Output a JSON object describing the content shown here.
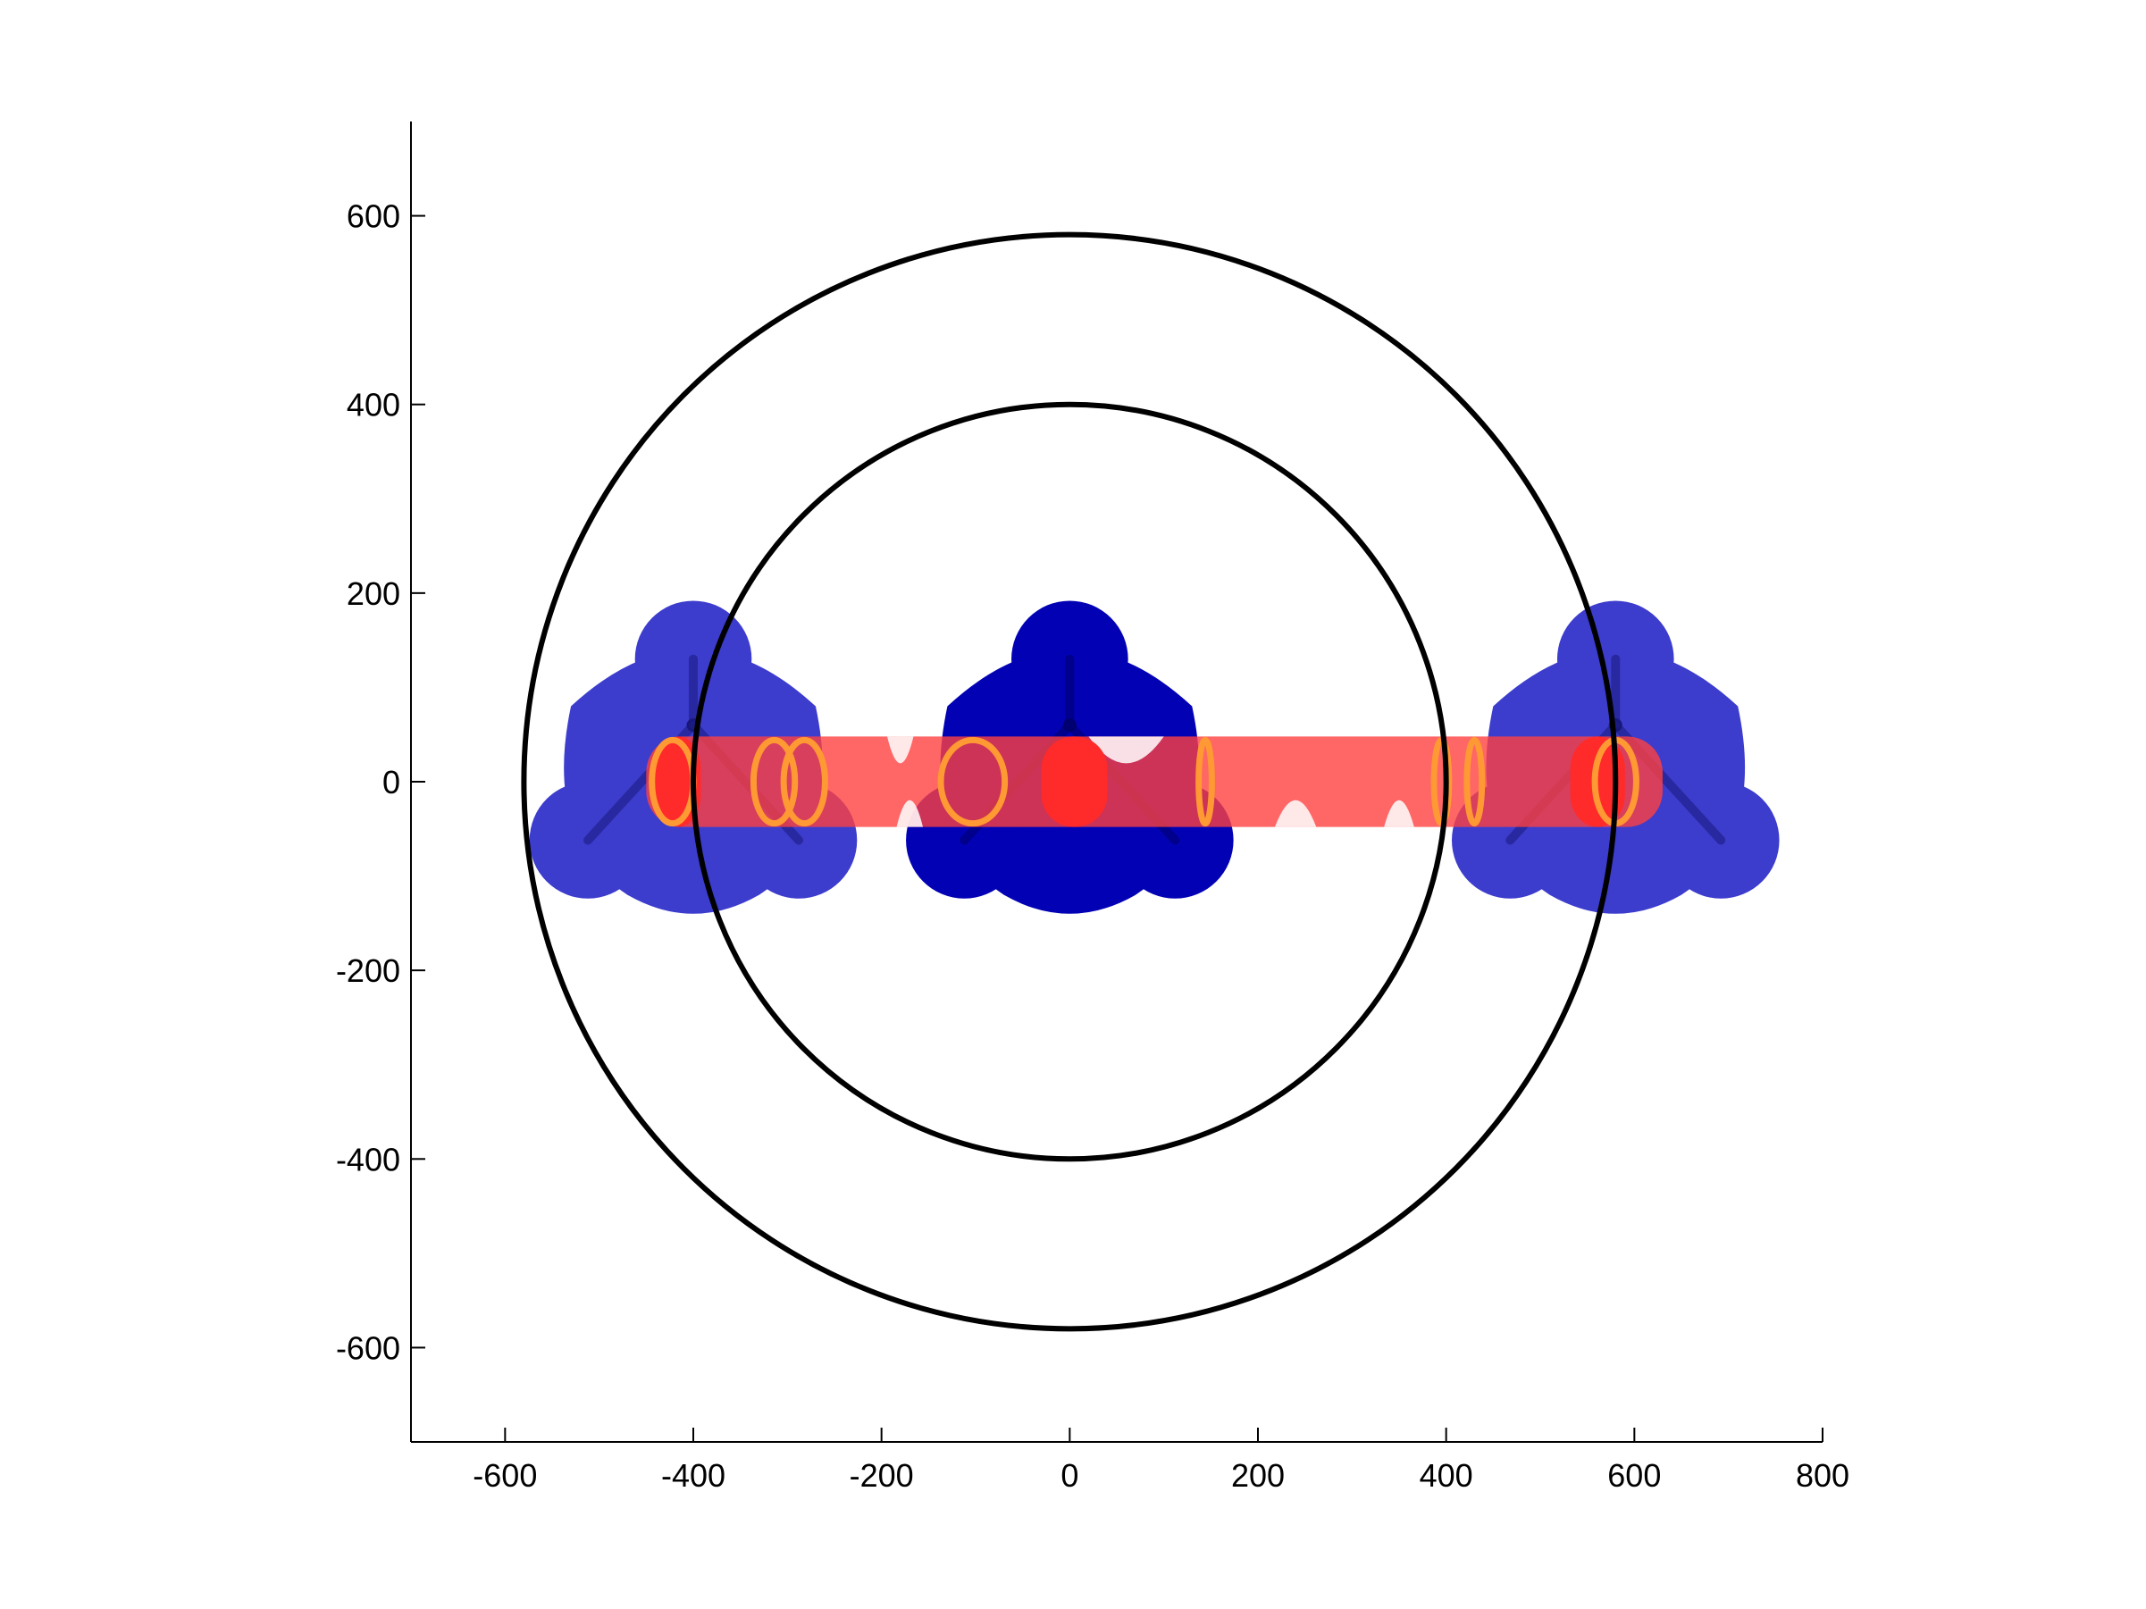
{
  "chart_data": {
    "type": "scatter",
    "title": "",
    "xlabel": "",
    "ylabel": "",
    "xlim": [
      -700,
      800
    ],
    "ylim": [
      -700,
      700
    ],
    "xticks": [
      -600,
      -400,
      -200,
      0,
      200,
      400,
      600,
      800
    ],
    "yticks": [
      -600,
      -400,
      -200,
      0,
      200,
      400,
      600
    ],
    "xtick_labels": [
      "-600",
      "-400",
      "-200",
      "0",
      "200",
      "400",
      "600",
      "800"
    ],
    "ytick_labels": [
      "-600",
      "-400",
      "-200",
      "0",
      "200",
      "400",
      "600"
    ],
    "grid": false,
    "box": false,
    "aspect": "equal",
    "circles": [
      {
        "cx": 0,
        "cy": 0,
        "r": 400,
        "color": "#000000"
      },
      {
        "cx": 0,
        "cy": 0,
        "r": 580,
        "color": "#000000"
      }
    ],
    "blue_clusters": [
      {
        "cx": -400,
        "cy": 0,
        "color": "#2828c8",
        "opacity": 0.9,
        "lobes": [
          [
            -400,
            130
          ],
          [
            -512,
            -62
          ],
          [
            -288,
            -62
          ]
        ]
      },
      {
        "cx": 0,
        "cy": 0,
        "color": "#0202b4",
        "opacity": 1.0,
        "lobes": [
          [
            0,
            130
          ],
          [
            -112,
            -62
          ],
          [
            112,
            -62
          ]
        ]
      },
      {
        "cx": 580,
        "cy": 0,
        "color": "#2828c8",
        "opacity": 0.9,
        "lobes": [
          [
            580,
            130
          ],
          [
            468,
            -62
          ],
          [
            692,
            -62
          ]
        ]
      }
    ],
    "red_band": {
      "x_range": [
        -450,
        630
      ],
      "y_range": [
        -48,
        48
      ],
      "color": "#ff4040",
      "opacity": 0.8
    },
    "bright_patches": [
      {
        "x_range": [
          -440,
          -392
        ],
        "color": "#ff2a2a"
      },
      {
        "x_range": [
          -30,
          40
        ],
        "color": "#ff2a2a"
      },
      {
        "x_range": [
          532,
          590
        ],
        "color": "#ff2a2a"
      }
    ],
    "orange_rings": [
      {
        "x": -422,
        "w": 44,
        "color": "#ff9933"
      },
      {
        "x": -314,
        "w": 44,
        "color": "#ff9933"
      },
      {
        "x": -282,
        "w": 44,
        "color": "#ff9933"
      },
      {
        "x": -103,
        "w": 68,
        "color": "#ff9933"
      },
      {
        "x": 144,
        "w": 14,
        "color": "#ff9933"
      },
      {
        "x": 395,
        "w": 16,
        "color": "#ff9933"
      },
      {
        "x": 430,
        "w": 16,
        "color": "#ff9933"
      },
      {
        "x": 580,
        "w": 44,
        "color": "#ff9933"
      }
    ]
  }
}
